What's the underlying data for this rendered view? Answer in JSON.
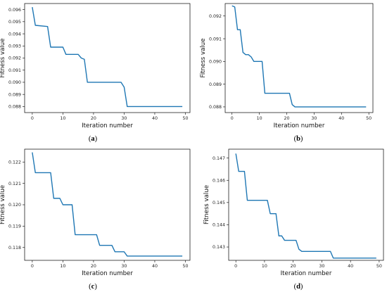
{
  "chart_data": [
    {
      "panel": "a",
      "caption_label": "a",
      "type": "line",
      "xlabel": "Iteration number",
      "ylabel": "Fitness value",
      "xlim": [
        -2.5,
        51.5
      ],
      "ylim": [
        0.0875,
        0.0965
      ],
      "xticks": [
        0,
        10,
        20,
        30,
        40,
        50
      ],
      "yticks": [
        0.088,
        0.089,
        0.09,
        0.091,
        0.092,
        0.093,
        0.094,
        0.095,
        0.096
      ],
      "ytick_decimals": 3,
      "series": [
        {
          "color": "#1f77b4",
          "x": [
            0,
            1,
            5,
            6,
            10,
            11,
            15,
            16,
            17,
            18,
            29,
            30,
            31,
            49
          ],
          "y": [
            0.0962,
            0.0947,
            0.0946,
            0.0929,
            0.0929,
            0.0923,
            0.0923,
            0.092,
            0.0919,
            0.09,
            0.09,
            0.0896,
            0.088,
            0.088
          ]
        }
      ]
    },
    {
      "panel": "b",
      "caption_label": "b",
      "type": "line",
      "xlabel": "Iteration number",
      "ylabel": "Fitness value",
      "xlim": [
        -2.5,
        51.5
      ],
      "ylim": [
        0.08775,
        0.09255
      ],
      "xticks": [
        0,
        10,
        20,
        30,
        40,
        50
      ],
      "yticks": [
        0.088,
        0.089,
        0.09,
        0.091,
        0.092
      ],
      "ytick_decimals": 3,
      "series": [
        {
          "color": "#1f77b4",
          "x": [
            0,
            1,
            2,
            3,
            4,
            5,
            6,
            7,
            8,
            11,
            12,
            21,
            22,
            23,
            49
          ],
          "y": [
            0.09245,
            0.0924,
            0.0914,
            0.0914,
            0.0904,
            0.0903,
            0.0903,
            0.0902,
            0.09,
            0.09,
            0.0886,
            0.0886,
            0.0881,
            0.088,
            0.088
          ]
        }
      ]
    },
    {
      "panel": "c",
      "caption_label": "c",
      "type": "line",
      "xlabel": "Iteration number",
      "ylabel": "Fitness value",
      "xlim": [
        -2.5,
        51.5
      ],
      "ylim": [
        0.1174,
        0.1226
      ],
      "xticks": [
        0,
        10,
        20,
        30,
        40,
        50
      ],
      "yticks": [
        0.118,
        0.119,
        0.12,
        0.121,
        0.122
      ],
      "ytick_decimals": 3,
      "series": [
        {
          "color": "#1f77b4",
          "x": [
            0,
            1,
            6,
            7,
            9,
            10,
            13,
            14,
            21,
            22,
            26,
            27,
            30,
            31,
            49
          ],
          "y": [
            0.12245,
            0.1215,
            0.1215,
            0.1203,
            0.1203,
            0.12,
            0.12,
            0.1186,
            0.1186,
            0.1181,
            0.1181,
            0.1178,
            0.1178,
            0.1176,
            0.1176
          ]
        }
      ]
    },
    {
      "panel": "d",
      "caption_label": "d",
      "type": "line",
      "xlabel": "Iteration number",
      "ylabel": "Fitness value",
      "xlim": [
        -2.5,
        51.5
      ],
      "ylim": [
        0.1424,
        0.1474
      ],
      "xticks": [
        0,
        10,
        20,
        30,
        40,
        50
      ],
      "yticks": [
        0.143,
        0.144,
        0.145,
        0.146,
        0.147
      ],
      "ytick_decimals": 3,
      "series": [
        {
          "color": "#1f77b4",
          "x": [
            0,
            1,
            3,
            4,
            11,
            12,
            14,
            15,
            16,
            17,
            21,
            22,
            23,
            33,
            34,
            49
          ],
          "y": [
            0.1472,
            0.1464,
            0.1464,
            0.1451,
            0.1451,
            0.1445,
            0.1445,
            0.1435,
            0.1435,
            0.1433,
            0.1433,
            0.1429,
            0.1428,
            0.1428,
            0.1425,
            0.1425
          ]
        }
      ]
    }
  ]
}
